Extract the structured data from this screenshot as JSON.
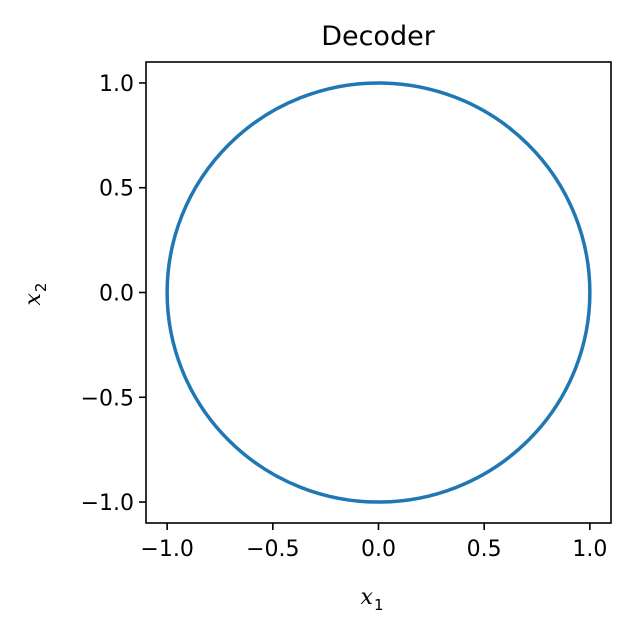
{
  "chart_data": {
    "type": "line",
    "title": "Decoder",
    "xlabel": {
      "base": "x",
      "sub": "1"
    },
    "ylabel": {
      "base": "x",
      "sub": "2"
    },
    "xlim": [
      -1.1,
      1.1
    ],
    "ylim": [
      -1.1,
      1.1
    ],
    "xticks": [
      -1.0,
      -0.5,
      0.0,
      0.5,
      1.0
    ],
    "xtick_labels": [
      "−1.0",
      "−0.5",
      "0.0",
      "0.5",
      "1.0"
    ],
    "yticks": [
      -1.0,
      -0.5,
      0.0,
      0.5,
      1.0
    ],
    "ytick_labels": [
      "−1.0",
      "−0.5",
      "0.0",
      "0.5",
      "1.0"
    ],
    "grid": false,
    "series": [
      {
        "color": "#1f77b4",
        "shape": "circle",
        "center": [
          0.0,
          0.0
        ],
        "radius": 1.0,
        "x": [
          1.0,
          0.9659,
          0.866,
          0.7071,
          0.5,
          0.2588,
          0.0,
          -0.2588,
          -0.5,
          -0.7071,
          -0.866,
          -0.9659,
          -1.0,
          -0.9659,
          -0.866,
          -0.7071,
          -0.5,
          -0.2588,
          0.0,
          0.2588,
          0.5,
          0.7071,
          0.866,
          0.9659,
          1.0
        ],
        "y": [
          0.0,
          0.2588,
          0.5,
          0.7071,
          0.866,
          0.9659,
          1.0,
          0.9659,
          0.866,
          0.7071,
          0.5,
          0.2588,
          0.0,
          -0.2588,
          -0.5,
          -0.7071,
          -0.866,
          -0.9659,
          -1.0,
          -0.9659,
          -0.866,
          -0.7071,
          -0.5,
          -0.2588,
          0.0
        ]
      }
    ]
  }
}
